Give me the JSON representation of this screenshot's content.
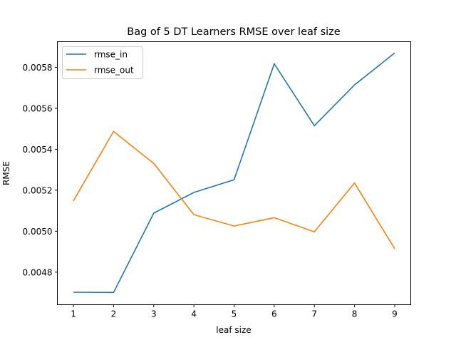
{
  "chart_data": {
    "type": "line",
    "title": "Bag of 5 DT Learners RMSE over leaf size",
    "xlabel": "leaf size",
    "ylabel": "RMSE",
    "x": [
      1,
      2,
      3,
      4,
      5,
      6,
      7,
      8,
      9
    ],
    "xlim": [
      0.6,
      9.4
    ],
    "ylim": [
      0.004641,
      0.005925
    ],
    "xticks": [
      "1",
      "2",
      "3",
      "4",
      "5",
      "6",
      "7",
      "8",
      "9"
    ],
    "yticks": [
      "0.0048",
      "0.0050",
      "0.0052",
      "0.0054",
      "0.0056",
      "0.0058"
    ],
    "grid": false,
    "legend_position": "upper-left",
    "series": [
      {
        "name": "rmse_in",
        "color": "#1f77b4",
        "values": [
          0.004702,
          0.004701,
          0.005088,
          0.005189,
          0.005251,
          0.005817,
          0.005515,
          0.005714,
          0.00587
        ]
      },
      {
        "name": "rmse_out",
        "color": "#ff7f0e",
        "values": [
          0.005148,
          0.005487,
          0.005331,
          0.005081,
          0.005025,
          0.005066,
          0.004997,
          0.005235,
          0.004914
        ]
      }
    ]
  }
}
